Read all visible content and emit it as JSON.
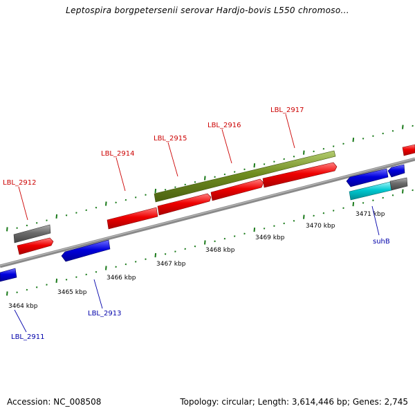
{
  "title": "Leptospira borgpetersenii serovar Hardjo-bovis L550 chromoso...",
  "footer": {
    "accession": "Accession: NC_008508",
    "summary": "Topology: circular; Length: 3,614,446 bp; Genes: 2,745"
  },
  "colors": {
    "forward_gene": "#ee0000",
    "reverse_gene": "#0000dd",
    "forward_label": "#cc0000",
    "reverse_label": "#0000aa",
    "pseudo_gene": "#6b6b6b",
    "long_feature": "#6f8c20",
    "rna_gene": "#00c8d0",
    "backbone": "#8a8a8a",
    "ticks": "#1a7a1a"
  },
  "kbp_labels": [
    "3464 kbp",
    "3465 kbp",
    "3466 kbp",
    "3467 kbp",
    "3468 kbp",
    "3469 kbp",
    "3470 kbp",
    "3471 kbp"
  ],
  "gene_labels": {
    "forward": [
      "LBL_2912",
      "LBL_2914",
      "LBL_2915",
      "LBL_2916",
      "LBL_2917"
    ],
    "reverse": [
      "LBL_2911",
      "LBL_2913",
      "suhB"
    ]
  }
}
